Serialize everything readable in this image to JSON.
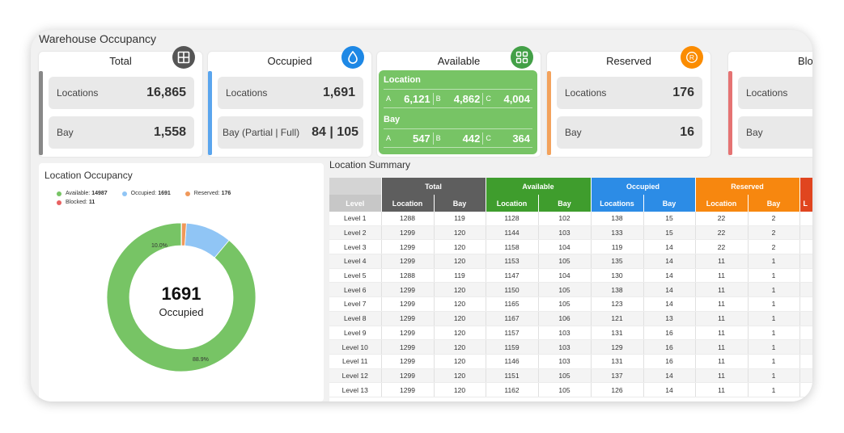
{
  "page_title": "Warehouse Occupancy",
  "cards": {
    "total": {
      "title": "Total",
      "icon": "grid-icon",
      "color": "#555555",
      "locations_label": "Locations",
      "locations_value": "16,865",
      "bay_label": "Bay",
      "bay_value": "1,558"
    },
    "occupied": {
      "title": "Occupied",
      "icon": "water-drop-icon",
      "color": "#1e88e5",
      "locations_label": "Locations",
      "locations_value": "1,691",
      "bay_label": "Bay (Partial | Full)",
      "bay_value": "84 | 105"
    },
    "available": {
      "title": "Available",
      "icon": "apps-icon",
      "color": "#43a047",
      "location_label": "Location",
      "location_values": [
        {
          "k": "A",
          "v": "6,121"
        },
        {
          "k": "B",
          "v": "4,862"
        },
        {
          "k": "C",
          "v": "4,004"
        }
      ],
      "bay_label": "Bay",
      "bay_values": [
        {
          "k": "A",
          "v": "547"
        },
        {
          "k": "B",
          "v": "442"
        },
        {
          "k": "C",
          "v": "364"
        }
      ]
    },
    "reserved": {
      "title": "Reserved",
      "icon": "reserved-r-icon",
      "color": "#fb8c00",
      "locations_label": "Locations",
      "locations_value": "176",
      "bay_label": "Bay",
      "bay_value": "16"
    },
    "blocked": {
      "title": "Blo",
      "color": "#e53935",
      "locations_label": "Locations",
      "bay_label": "Bay"
    }
  },
  "occupancy_panel": {
    "title": "Location Occupancy",
    "legend": [
      {
        "label": "Available:",
        "value": "14987",
        "color": "#77c465"
      },
      {
        "label": "Occupied:",
        "value": "1691",
        "color": "#90c5f5"
      },
      {
        "label": "Reserved:",
        "value": "176",
        "color": "#f0985a"
      },
      {
        "label": "Blocked:",
        "value": "11",
        "color": "#e86161"
      }
    ],
    "center_value": "1691",
    "center_label": "Occupied",
    "pct_available": "88.9%",
    "pct_occupied": "10.0%",
    "shares": [
      0.889,
      0.1,
      0.0104,
      0.0006
    ]
  },
  "summary": {
    "title": "Location Summary",
    "groups": [
      {
        "label": "Total",
        "color": "#5e5e5e"
      },
      {
        "label": "Available",
        "color": "#3f9d2d"
      },
      {
        "label": "Occupied",
        "color": "#2c8ce6"
      },
      {
        "label": "Reserved",
        "color": "#f7870f"
      },
      {
        "label": "",
        "color": "#e0451f"
      }
    ],
    "subheaders": [
      "Level",
      "Location",
      "Bay",
      "Location",
      "Bay",
      "Locations",
      "Bay",
      "Location",
      "Bay",
      "L"
    ],
    "rows": [
      [
        "Level 1",
        "1288",
        "119",
        "1128",
        "102",
        "138",
        "15",
        "22",
        "2"
      ],
      [
        "Level 2",
        "1299",
        "120",
        "1144",
        "103",
        "133",
        "15",
        "22",
        "2"
      ],
      [
        "Level 3",
        "1299",
        "120",
        "1158",
        "104",
        "119",
        "14",
        "22",
        "2"
      ],
      [
        "Level 4",
        "1299",
        "120",
        "1153",
        "105",
        "135",
        "14",
        "11",
        "1"
      ],
      [
        "Level 5",
        "1288",
        "119",
        "1147",
        "104",
        "130",
        "14",
        "11",
        "1"
      ],
      [
        "Level 6",
        "1299",
        "120",
        "1150",
        "105",
        "138",
        "14",
        "11",
        "1"
      ],
      [
        "Level 7",
        "1299",
        "120",
        "1165",
        "105",
        "123",
        "14",
        "11",
        "1"
      ],
      [
        "Level 8",
        "1299",
        "120",
        "1167",
        "106",
        "121",
        "13",
        "11",
        "1"
      ],
      [
        "Level 9",
        "1299",
        "120",
        "1157",
        "103",
        "131",
        "16",
        "11",
        "1"
      ],
      [
        "Level 10",
        "1299",
        "120",
        "1159",
        "103",
        "129",
        "16",
        "11",
        "1"
      ],
      [
        "Level 11",
        "1299",
        "120",
        "1146",
        "103",
        "131",
        "16",
        "11",
        "1"
      ],
      [
        "Level 12",
        "1299",
        "120",
        "1151",
        "105",
        "137",
        "14",
        "11",
        "1"
      ],
      [
        "Level 13",
        "1299",
        "120",
        "1162",
        "105",
        "126",
        "14",
        "11",
        "1"
      ]
    ]
  }
}
